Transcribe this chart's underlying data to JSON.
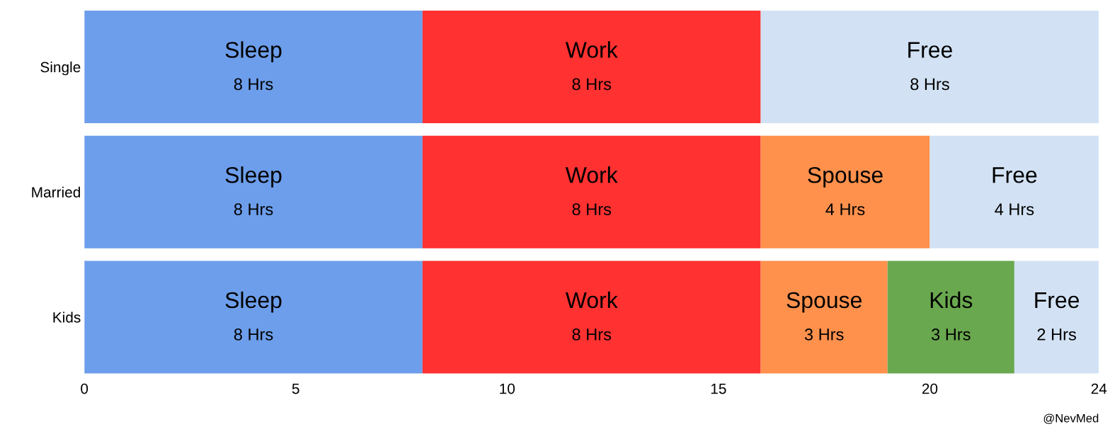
{
  "chart_data": {
    "type": "bar",
    "orientation": "horizontal",
    "stacked": true,
    "categories": [
      "Single",
      "Married",
      "Kids"
    ],
    "series": [
      {
        "name": "Sleep",
        "color": "#6d9eeb",
        "values": [
          8,
          8,
          8
        ],
        "value_labels": [
          "8 Hrs",
          "8 Hrs",
          "8 Hrs"
        ]
      },
      {
        "name": "Work",
        "color": "#ff3131",
        "values": [
          8,
          8,
          8
        ],
        "value_labels": [
          "8 Hrs",
          "8 Hrs",
          "8 Hrs"
        ]
      },
      {
        "name": "Spouse",
        "color": "#ff914d",
        "values": [
          null,
          4,
          3
        ],
        "value_labels": [
          null,
          "4 Hrs",
          "3 Hrs"
        ]
      },
      {
        "name": "Kids",
        "color": "#6aa84f",
        "values": [
          null,
          null,
          3
        ],
        "value_labels": [
          null,
          null,
          "3 Hrs"
        ]
      },
      {
        "name": "Free",
        "color": "#d2e2f4",
        "values": [
          8,
          4,
          2
        ],
        "value_labels": [
          "8 Hrs",
          "4 Hrs",
          "2 Hrs"
        ]
      }
    ],
    "xlim": [
      0,
      24
    ],
    "xticks": [
      0,
      5,
      10,
      15,
      20,
      24
    ],
    "grid": false,
    "legend": false,
    "annotations": [
      "@NevMed"
    ]
  }
}
